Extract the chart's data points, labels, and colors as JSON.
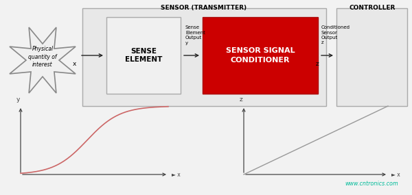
{
  "bg_color": "#f2f2f2",
  "title_sensor": "SENSOR (TRANSMITTER)",
  "title_controller": "CONTROLLER",
  "sense_element_label": "SENSE\nELEMENT",
  "conditioner_label": "SENSOR SIGNAL\nCONDITIONER",
  "physical_label": "Physical\nquantity of\ninterest",
  "sense_output_label": "Sense\nElement\nOutput\ny",
  "conditioned_label": "Conditioned\nSensor\nOutput\nz",
  "x_label": "x",
  "z_label": "z",
  "watermark": "www.cntronics.com",
  "watermark_color": "#00bb99",
  "sensor_box_color": "#e8e8e8",
  "sensor_box_edge": "#aaaaaa",
  "sense_element_fill": "#f0f0f0",
  "sense_element_edge": "#aaaaaa",
  "conditioner_fill": "#cc0000",
  "conditioner_edge": "#aa0000",
  "conditioner_text_color": "#ffffff",
  "controller_box_fill": "#e8e8e8",
  "controller_box_edge": "#aaaaaa",
  "star_fill": "#f0f0f0",
  "star_edge": "#888888",
  "arrow_color": "#222222",
  "curve1_color": "#cc6666",
  "curve2_color": "#999999",
  "axis_color": "#444444",
  "label_fontsize": 5.5,
  "small_label_fontsize": 4.8,
  "title_fontsize": 6.5,
  "axis_label_fontsize": 6.0
}
